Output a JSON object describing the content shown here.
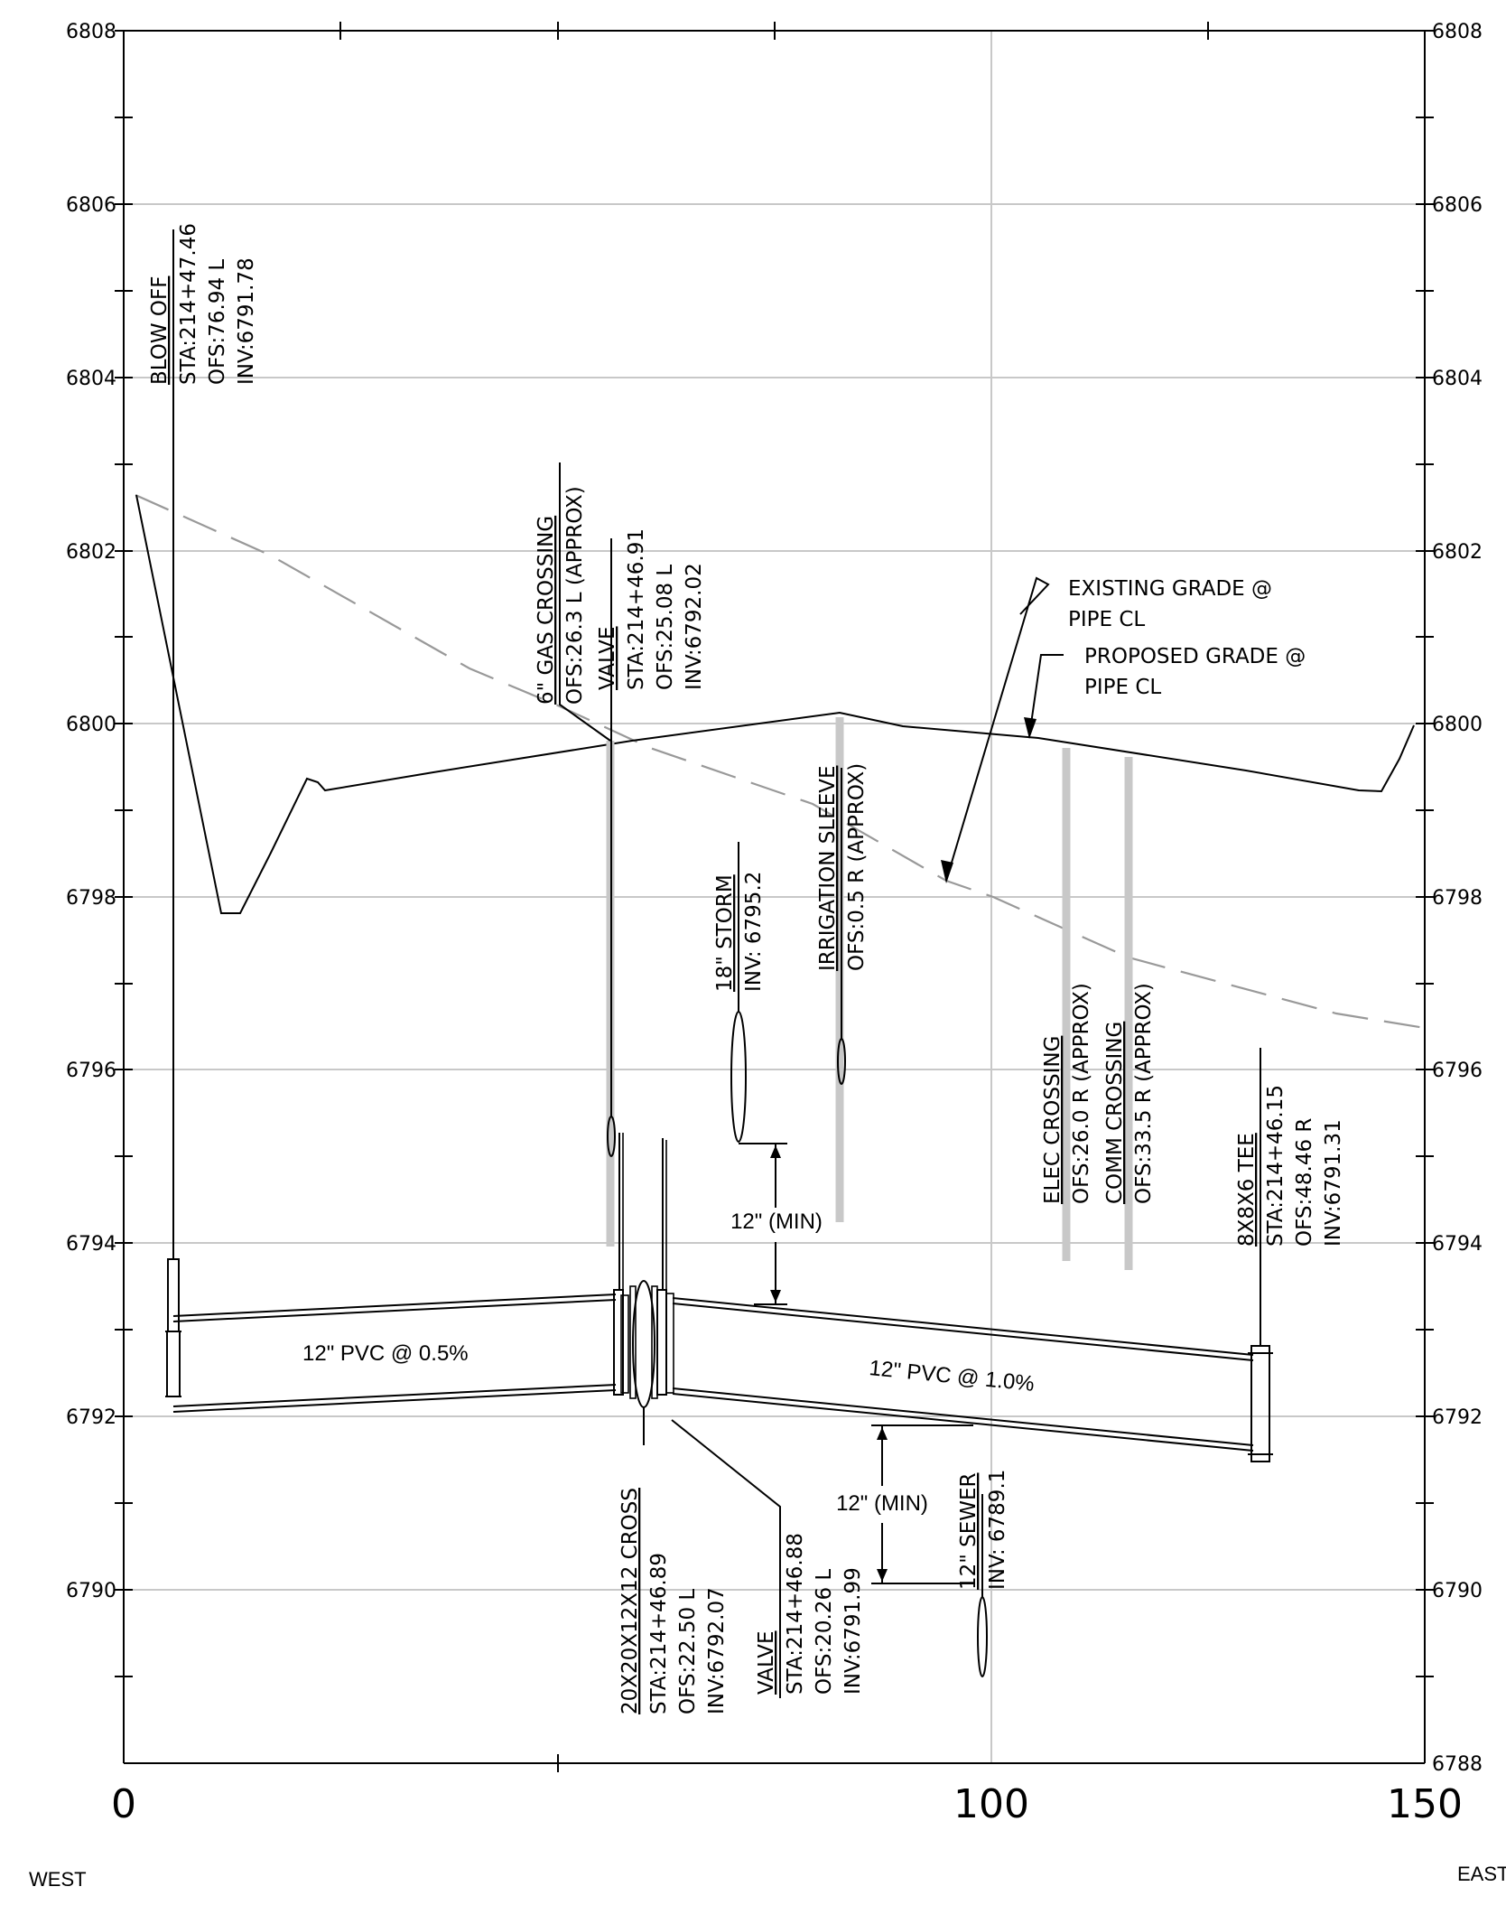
{
  "axes": {
    "left_ticks": [
      "6808",
      "6806",
      "6804",
      "6802",
      "6800",
      "6798",
      "6796",
      "6794",
      "6792",
      "6790"
    ],
    "right_ticks": [
      "6808",
      "6806",
      "6804",
      "6802",
      "6800",
      "6798",
      "6796",
      "6794",
      "6792",
      "6790",
      "6788"
    ],
    "x_ticks": [
      "0",
      "100",
      "150"
    ],
    "west": "WEST",
    "east": "EAST"
  },
  "labels": {
    "blow_off": [
      "BLOW OFF",
      "STA:214+47.46",
      "OFS:76.94 L",
      "INV:6791.78"
    ],
    "gas": [
      "6\" GAS CROSSING",
      "OFS:26.3 L (APPROX)"
    ],
    "valve_top": [
      "VALVE",
      "STA:214+46.91",
      "OFS:25.08 L",
      "INV:6792.02"
    ],
    "storm": [
      "18\" STORM",
      "INV: 6795.2"
    ],
    "irrigation": [
      "IRRIGATION SLEEVE",
      "OFS:0.5 R (APPROX)"
    ],
    "elec": [
      "ELEC CROSSING",
      "OFS:26.0 R (APPROX)"
    ],
    "comm": [
      "COMM CROSSING",
      "OFS:33.5 R (APPROX)"
    ],
    "tee": [
      "8X8X6 TEE",
      "STA:214+46.15",
      "OFS:48.46 R",
      "INV:6791.31"
    ],
    "cross": [
      "20X20X12X12 CROSS",
      "STA:214+46.89",
      "OFS:22.50 L",
      "INV:6792.07"
    ],
    "valve_bottom": [
      "VALVE",
      "STA:214+46.88",
      "OFS:20.26 L",
      "INV:6791.99"
    ],
    "sewer": [
      "12\" SEWER",
      "INV: 6789.1"
    ],
    "existing_grade": [
      "EXISTING GRADE @",
      "PIPE CL"
    ],
    "proposed_grade": [
      "PROPOSED GRADE @",
      "PIPE CL"
    ],
    "pipe_left": "12\" PVC @ 0.5%",
    "pipe_right": "12\" PVC @ 1.0%",
    "min_top": "12\" (MIN)",
    "min_bottom": "12\" (MIN)"
  }
}
